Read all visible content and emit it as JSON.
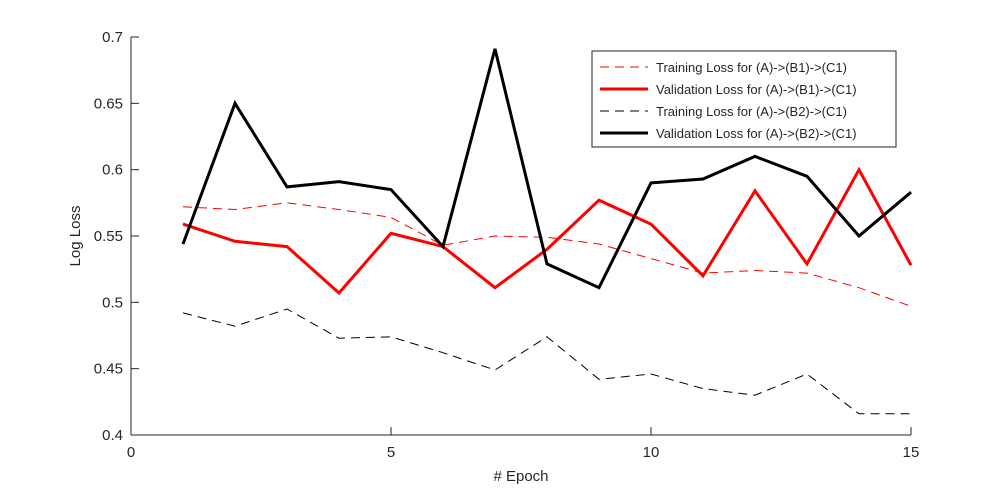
{
  "chart_data": {
    "type": "line",
    "title": "",
    "xlabel": "# Epoch",
    "ylabel": "Log Loss",
    "xlim": [
      0,
      15
    ],
    "ylim": [
      0.4,
      0.7
    ],
    "xticks": [
      "0",
      "5",
      "10",
      "15"
    ],
    "yticks": [
      "0.4",
      "0.45",
      "0.5",
      "0.55",
      "0.6",
      "0.65",
      "0.7"
    ],
    "grid": false,
    "legend_position": "top-right",
    "x": [
      1,
      2,
      3,
      4,
      5,
      6,
      7,
      8,
      9,
      10,
      11,
      12,
      13,
      14,
      15
    ],
    "series": [
      {
        "name": "Training Loss for (A)->(B1)->(C1)",
        "color": "#ff0000",
        "style": "dashed-thin",
        "values": [
          0.572,
          0.57,
          0.575,
          0.57,
          0.564,
          0.543,
          0.55,
          0.549,
          0.544,
          0.533,
          0.522,
          0.524,
          0.522,
          0.511,
          0.497
        ]
      },
      {
        "name": "Validation Loss for (A)->(B1)->(C1)",
        "color": "#ff0000",
        "style": "solid-thick",
        "values": [
          0.559,
          0.546,
          0.542,
          0.507,
          0.552,
          0.542,
          0.511,
          0.54,
          0.577,
          0.559,
          0.52,
          0.584,
          0.529,
          0.6,
          0.528
        ]
      },
      {
        "name": "Training Loss for (A)->(B2)->(C1)",
        "color": "#000000",
        "style": "dashed-thin",
        "values": [
          0.492,
          0.482,
          0.495,
          0.473,
          0.474,
          0.462,
          0.449,
          0.474,
          0.442,
          0.446,
          0.435,
          0.43,
          0.446,
          0.416,
          0.416
        ]
      },
      {
        "name": "Validation Loss for (A)->(B2)->(C1)",
        "color": "#000000",
        "style": "solid-thick",
        "values": [
          0.544,
          0.65,
          0.587,
          0.591,
          0.585,
          0.542,
          0.691,
          0.529,
          0.511,
          0.59,
          0.593,
          0.61,
          0.595,
          0.55,
          0.583
        ]
      }
    ]
  }
}
